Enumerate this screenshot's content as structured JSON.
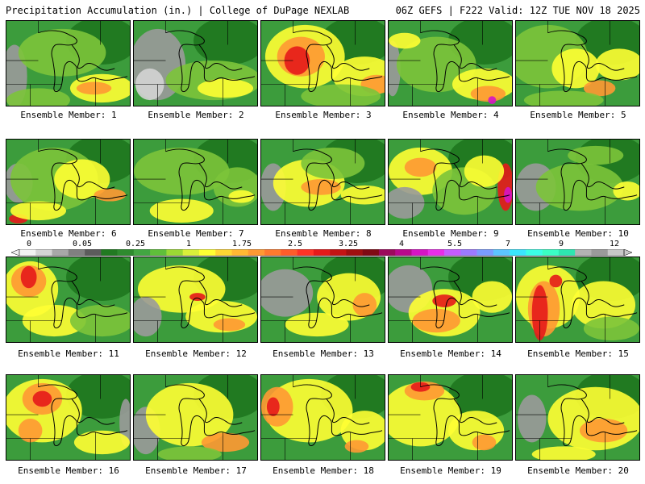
{
  "header": {
    "left": "Precipitation Accumulation (in.) | College of DuPage NEXLAB",
    "right": "06Z GEFS | F222 Valid: 12Z TUE NOV 18 2025"
  },
  "legend": {
    "ticks": [
      "0",
      "0.05",
      "0.25",
      "1",
      "1.75",
      "2.5",
      "3.25",
      "4",
      "5.5",
      "7",
      "9",
      "12"
    ],
    "colors": [
      "#f2f2f2",
      "#d4d4d4",
      "#a8a8a8",
      "#808080",
      "#5c5c5c",
      "#217a21",
      "#2e8b2e",
      "#42a642",
      "#5fbf3a",
      "#9cd934",
      "#d9f03a",
      "#ffff33",
      "#ffd633",
      "#ffb833",
      "#ff9933",
      "#ff7a2e",
      "#ff5c2a",
      "#ff3326",
      "#e61a1a",
      "#c41414",
      "#a01010",
      "#800a14",
      "#9c0a5c",
      "#b80a8c",
      "#d614c4",
      "#e82ee8",
      "#c65cff",
      "#9c7aff",
      "#7a9cff",
      "#5cc4ff",
      "#3ae6ff",
      "#3affe6",
      "#3affc4",
      "#2ee6b0",
      "#b3b3b3",
      "#9a9a9a",
      "#c8c8c8"
    ]
  },
  "members": [
    {
      "label": "Ensemble Member: 1"
    },
    {
      "label": "Ensemble Member: 2"
    },
    {
      "label": "Ensemble Member: 3"
    },
    {
      "label": "Ensemble Member: 4"
    },
    {
      "label": "Ensemble Member: 5"
    },
    {
      "label": "Ensemble Member: 6"
    },
    {
      "label": "Ensemble Member: 7"
    },
    {
      "label": "Ensemble Member: 8"
    },
    {
      "label": "Ensemble Member: 9"
    },
    {
      "label": "Ensemble Member: 10"
    },
    {
      "label": "Ensemble Member: 11"
    },
    {
      "label": "Ensemble Member: 12"
    },
    {
      "label": "Ensemble Member: 13"
    },
    {
      "label": "Ensemble Member: 14"
    },
    {
      "label": "Ensemble Member: 15"
    },
    {
      "label": "Ensemble Member: 16"
    },
    {
      "label": "Ensemble Member: 17"
    },
    {
      "label": "Ensemble Member: 18"
    },
    {
      "label": "Ensemble Member: 19"
    },
    {
      "label": "Ensemble Member: 20"
    }
  ],
  "palette": {
    "dark_green": "#217a21",
    "green": "#3c9c3c",
    "light_green": "#7cc43a",
    "yellow": "#ffff33",
    "orange": "#ff9933",
    "red": "#e61a1a",
    "gray": "#9a9a9a",
    "light_gray": "#d4d4d4",
    "magenta": "#d614c4"
  }
}
